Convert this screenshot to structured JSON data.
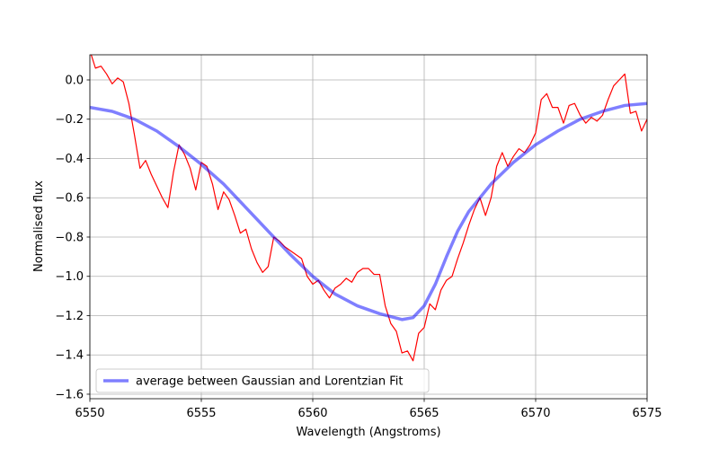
{
  "chart_data": {
    "type": "line",
    "xlabel": "Wavelength (Angstroms)",
    "ylabel": "Normalised flux",
    "xlim": [
      6550,
      6575
    ],
    "ylim": [
      -1.623,
      0.128
    ],
    "xticks": [
      6550,
      6555,
      6560,
      6565,
      6570,
      6575
    ],
    "yticks": [
      {
        "value": -1.6,
        "label": "−1.6"
      },
      {
        "value": -1.4,
        "label": "−1.4"
      },
      {
        "value": -1.2,
        "label": "−1.2"
      },
      {
        "value": -1.0,
        "label": "−1.0"
      },
      {
        "value": -0.8,
        "label": "−0.8"
      },
      {
        "value": -0.6,
        "label": "−0.6"
      },
      {
        "value": -0.4,
        "label": "−0.4"
      },
      {
        "value": -0.2,
        "label": "−0.2"
      },
      {
        "value": 0,
        "label": "0.0"
      }
    ],
    "grid": true,
    "legend": "lower left",
    "series": [
      {
        "color": "#ff0000",
        "width": 1.2,
        "x": [
          6550,
          6550.25,
          6550.5,
          6550.75,
          6551,
          6551.25,
          6551.5,
          6551.75,
          6552,
          6552.25,
          6552.5,
          6552.75,
          6553,
          6553.25,
          6553.5,
          6553.75,
          6554,
          6554.25,
          6554.5,
          6554.75,
          6555,
          6555.25,
          6555.5,
          6555.75,
          6556,
          6556.25,
          6556.5,
          6556.75,
          6557,
          6557.25,
          6557.5,
          6557.75,
          6558,
          6558.25,
          6558.5,
          6558.75,
          6559,
          6559.25,
          6559.5,
          6559.75,
          6560,
          6560.25,
          6560.5,
          6560.75,
          6561,
          6561.25,
          6561.5,
          6561.75,
          6562,
          6562.25,
          6562.5,
          6562.75,
          6563,
          6563.25,
          6563.5,
          6563.75,
          6564,
          6564.25,
          6564.5,
          6564.75,
          6565,
          6565.25,
          6565.5,
          6565.75,
          6566,
          6566.25,
          6566.5,
          6566.75,
          6567,
          6567.25,
          6567.5,
          6567.75,
          6568,
          6568.25,
          6568.5,
          6568.75,
          6569,
          6569.25,
          6569.5,
          6569.75,
          6570,
          6570.25,
          6570.5,
          6570.75,
          6571,
          6571.25,
          6571.5,
          6571.75,
          6572,
          6572.25,
          6572.5,
          6572.75,
          6573,
          6573.25,
          6573.5,
          6573.75,
          6574,
          6574.25,
          6574.5,
          6574.75,
          6575
        ],
        "values": [
          0.15,
          0.06,
          0.07,
          0.03,
          -0.02,
          0.01,
          -0.01,
          -0.12,
          -0.28,
          -0.45,
          -0.41,
          -0.48,
          -0.54,
          -0.6,
          -0.65,
          -0.47,
          -0.33,
          -0.38,
          -0.45,
          -0.56,
          -0.42,
          -0.44,
          -0.53,
          -0.66,
          -0.57,
          -0.61,
          -0.69,
          -0.78,
          -0.76,
          -0.86,
          -0.93,
          -0.98,
          -0.95,
          -0.8,
          -0.82,
          -0.85,
          -0.87,
          -0.89,
          -0.91,
          -1.0,
          -1.04,
          -1.02,
          -1.07,
          -1.11,
          -1.06,
          -1.04,
          -1.01,
          -1.03,
          -0.98,
          -0.96,
          -0.96,
          -0.99,
          -0.99,
          -1.15,
          -1.24,
          -1.28,
          -1.39,
          -1.38,
          -1.43,
          -1.29,
          -1.26,
          -1.14,
          -1.17,
          -1.07,
          -1.02,
          -1.0,
          -0.91,
          -0.83,
          -0.74,
          -0.66,
          -0.6,
          -0.69,
          -0.6,
          -0.44,
          -0.37,
          -0.44,
          -0.39,
          -0.35,
          -0.37,
          -0.33,
          -0.27,
          -0.1,
          -0.07,
          -0.14,
          -0.14,
          -0.22,
          -0.13,
          -0.12,
          -0.18,
          -0.22,
          -0.19,
          -0.21,
          -0.18,
          -0.1,
          -0.03,
          0.0,
          0.03,
          -0.17,
          -0.16,
          -0.26,
          -0.2
        ]
      },
      {
        "name": "average between Gaussian and Lorentzian Fit",
        "color": "#0000ff",
        "opacity": 0.5,
        "width": 3.5,
        "x": [
          6550,
          6551,
          6552,
          6553,
          6554,
          6555,
          6556,
          6557,
          6558,
          6559,
          6560,
          6561,
          6562,
          6563,
          6564,
          6564.5,
          6565,
          6565.5,
          6566,
          6566.5,
          6567,
          6568,
          6569,
          6570,
          6571,
          6572,
          6573,
          6574,
          6575
        ],
        "values": [
          -0.14,
          -0.16,
          -0.2,
          -0.26,
          -0.34,
          -0.43,
          -0.53,
          -0.65,
          -0.77,
          -0.89,
          -1.0,
          -1.09,
          -1.15,
          -1.19,
          -1.22,
          -1.21,
          -1.15,
          -1.04,
          -0.9,
          -0.77,
          -0.67,
          -0.53,
          -0.42,
          -0.33,
          -0.26,
          -0.2,
          -0.16,
          -0.13,
          -0.12
        ]
      }
    ]
  }
}
